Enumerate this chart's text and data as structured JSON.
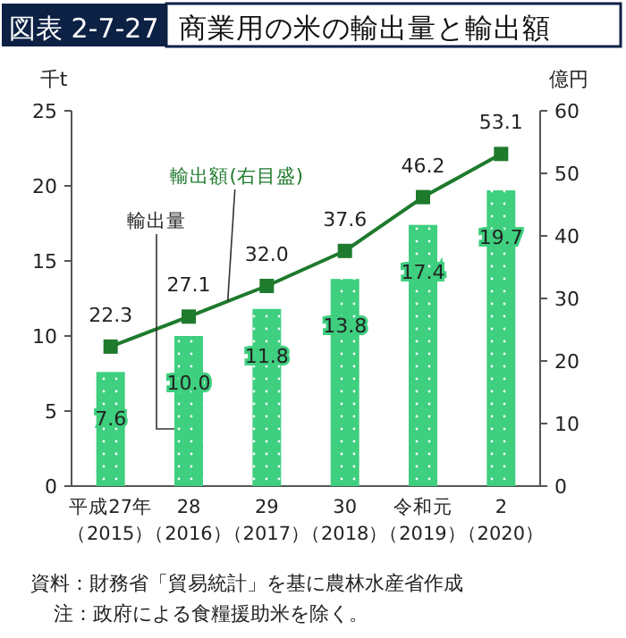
{
  "chart_data": {
    "type": "bar",
    "subtitle": "図表 2-7-27",
    "title": "商業用の米の輸出量と輸出額",
    "ylabel": "千t",
    "y2label": "億円",
    "categories": [
      "平成27年（2015）",
      "28（2016）",
      "29（2017）",
      "30（2018）",
      "令和元（2019）",
      "2（2020）"
    ],
    "series": [
      {
        "name": "輸出量",
        "color": "#3ecf7f",
        "values": [
          7.6,
          10.0,
          11.8,
          13.8,
          17.4,
          19.7
        ],
        "value_labels": [
          "7.6",
          "10.0",
          "11.8",
          "13.8",
          "17.4",
          "19.7"
        ]
      },
      {
        "name": "輸出額(右目盛)",
        "type": "line",
        "axis": "y2",
        "color": "#1e7a2c",
        "marker": "square",
        "values": [
          22.3,
          27.1,
          32.0,
          37.6,
          46.2,
          53.1
        ],
        "value_labels": [
          "22.3",
          "27.1",
          "32.0",
          "37.6",
          "46.2",
          "53.1"
        ]
      }
    ],
    "ylim": [
      0,
      25
    ],
    "yticks": [
      0,
      5,
      10,
      15,
      20,
      25
    ],
    "y2lim": [
      0,
      60
    ],
    "y2ticks": [
      0,
      10,
      20,
      30,
      40,
      50,
      60
    ],
    "legend": false,
    "grid": false,
    "annotations": [
      "資料：財務省「貿易統計」を基に農林水産省作成",
      "注：政府による食糧援助米を除く。"
    ]
  }
}
